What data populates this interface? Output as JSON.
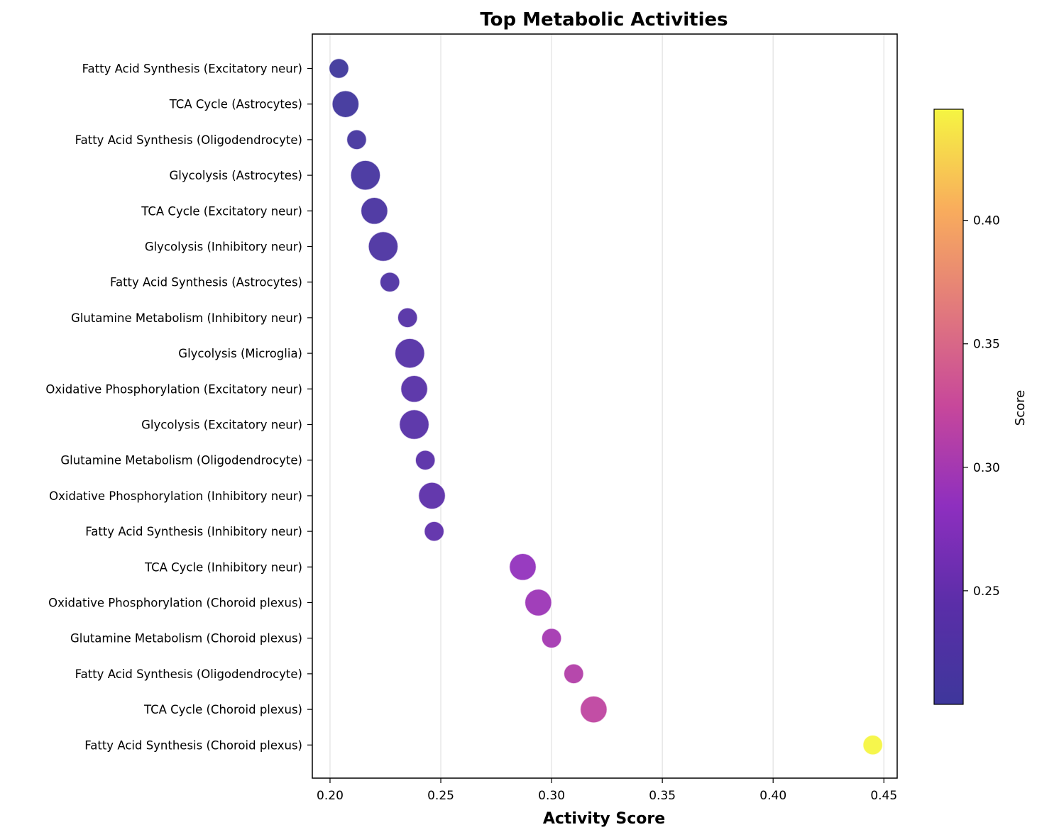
{
  "chart_data": {
    "type": "scatter",
    "title": "Top Metabolic Activities",
    "xlabel": "Activity Score",
    "ylabel": "",
    "xlim": [
      0.192,
      0.456
    ],
    "x_ticks": [
      "0.20",
      "0.25",
      "0.30",
      "0.35",
      "0.40",
      "0.45"
    ],
    "x_tick_values": [
      0.2,
      0.25,
      0.3,
      0.35,
      0.4,
      0.45
    ],
    "grid": "vertical",
    "colormap": "plasma",
    "colorbar": {
      "label": "Score",
      "range": [
        0.204,
        0.445
      ],
      "ticks": [
        "0.25",
        "0.30",
        "0.35",
        "0.40"
      ],
      "tick_values": [
        0.25,
        0.3,
        0.35,
        0.4
      ],
      "stops": [
        "#3e379b",
        "#5a2ea8",
        "#8e2fbf",
        "#c7479b",
        "#e27a7c",
        "#f9ad5c",
        "#f5f542"
      ]
    },
    "categories": [
      "Fatty Acid Synthesis (Excitatory neur)",
      "TCA Cycle (Astrocytes)",
      "Fatty Acid Synthesis (Oligodendrocyte)",
      "Glycolysis (Astrocytes)",
      "TCA Cycle (Excitatory neur)",
      "Glycolysis (Inhibitory neur)",
      "Fatty Acid Synthesis (Astrocytes)",
      "Glutamine Metabolism (Inhibitory neur)",
      "Glycolysis (Microglia)",
      "Oxidative Phosphorylation (Excitatory neur)",
      "Glycolysis (Excitatory neur)",
      "Glutamine Metabolism (Oligodendrocyte)",
      "Oxidative Phosphorylation (Inhibitory neur)",
      "Fatty Acid Synthesis (Inhibitory neur)",
      "TCA Cycle (Inhibitory neur)",
      "Oxidative Phosphorylation (Choroid plexus)",
      "Glutamine Metabolism (Choroid plexus)",
      "Fatty Acid Synthesis (Oligodendrocyte)",
      "TCA Cycle (Choroid plexus)",
      "Fatty Acid Synthesis (Choroid plexus)"
    ],
    "values": [
      0.204,
      0.207,
      0.212,
      0.216,
      0.22,
      0.224,
      0.227,
      0.235,
      0.236,
      0.238,
      0.238,
      0.243,
      0.246,
      0.247,
      0.287,
      0.294,
      0.3,
      0.31,
      0.319,
      0.445
    ],
    "marker_size_weight": [
      1,
      2,
      1,
      3,
      2,
      3,
      1,
      1,
      3,
      2,
      3,
      1,
      2,
      1,
      2,
      2,
      1,
      1,
      2,
      1
    ]
  }
}
